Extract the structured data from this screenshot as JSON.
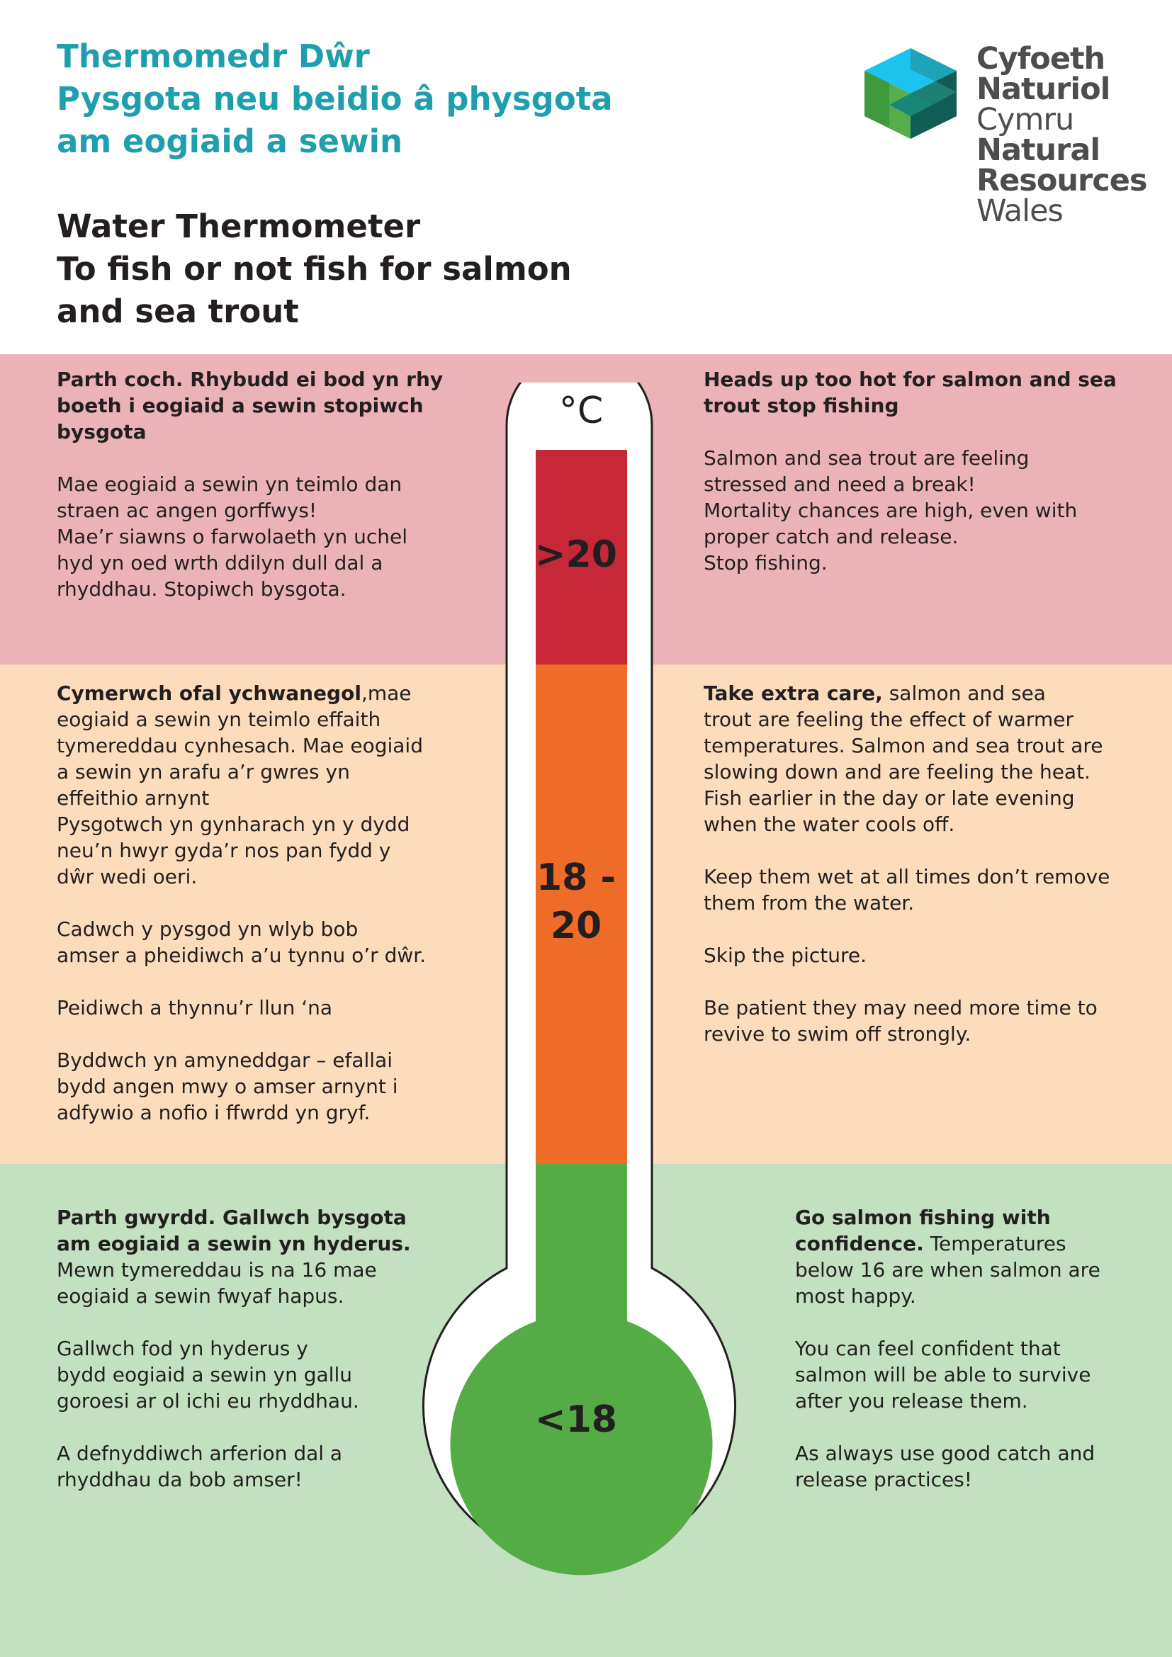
{
  "header": {
    "title_cy": [
      "Thermomedr Dŵr",
      "Pysgota neu beidio â physgota",
      "am eogiaid a sewin"
    ],
    "title_en": [
      "Water Thermometer",
      "To fish or not fish for salmon",
      "and sea trout"
    ]
  },
  "logo": {
    "icon": "nrw-hexagon-logo",
    "lines_cy": [
      "Cyfoeth",
      "Naturiol",
      "Cymru"
    ],
    "lines_en": [
      "Natural",
      "Resources",
      "Wales"
    ]
  },
  "thermometer": {
    "unit": "°C",
    "zones": [
      {
        "label": ">20",
        "color": "#c62838"
      },
      {
        "label_line1": "18 -",
        "label_line2": "20",
        "color": "#ef6b28"
      },
      {
        "label": "<18",
        "color": "#55ab45"
      }
    ]
  },
  "red_zone": {
    "background": "#ebb3b8",
    "cy_heading": [
      "Parth coch. Rhybudd ei bod yn rhy",
      "boeth i eogiaid a sewin stopiwch",
      "bysgota"
    ],
    "cy_body": [
      "Mae eogiaid a sewin yn teimlo dan",
      "straen ac angen gorffwys!",
      "Mae’r siawns o farwolaeth yn uchel",
      "hyd yn oed wrth ddilyn dull dal a",
      "rhyddhau. Stopiwch bysgota."
    ],
    "en_heading": [
      "Heads up too hot for salmon and sea",
      "trout stop fishing"
    ],
    "en_body": [
      "Salmon and sea trout are feeling",
      "stressed and need a break!",
      "Mortality chances are high, even with",
      "proper catch and release.",
      "Stop fishing."
    ]
  },
  "orange_zone": {
    "background": "#fcdcba",
    "cy_lead_bold": "Cymerwch ofal ychwanegol",
    "cy_lead_rest": ",mae",
    "cy_p1": [
      "eogiaid a sewin yn teimlo effaith",
      "tymereddau cynhesach.  Mae eogiaid",
      "a sewin yn arafu a’r gwres yn",
      "effeithio arnynt",
      "Pysgotwch yn gynharach yn y dydd",
      "neu’n hwyr gyda’r nos pan fydd y",
      "dŵr wedi oeri."
    ],
    "cy_p2": [
      "Cadwch y pysgod yn wlyb bob",
      "amser a pheidiwch a’u tynnu o’r dŵr."
    ],
    "cy_p3": [
      "Peidiwch a thynnu’r llun ‘na"
    ],
    "cy_p4": [
      "Byddwch yn amyneddgar – efallai",
      "bydd angen mwy o amser arnynt i",
      "adfywio a nofio i ffwrdd yn gryf."
    ],
    "en_lead_bold": "Take extra care,",
    "en_lead_rest": "  salmon and sea",
    "en_p1": [
      "trout are feeling the effect of warmer",
      "temperatures. Salmon and sea trout are",
      "slowing down and are feeling the heat.",
      "Fish earlier in the day or late evening",
      "when the water cools off."
    ],
    "en_p2": [
      "Keep them wet at all times don’t remove",
      "them from the water."
    ],
    "en_p3": [
      "Skip the picture."
    ],
    "en_p4": [
      "Be patient they may need more time to",
      "revive to swim off strongly."
    ]
  },
  "green_zone": {
    "background": "#c3e0c1",
    "cy_heading": [
      "Parth gwyrdd. Gallwch bysgota",
      "am eogiaid a sewin yn hyderus."
    ],
    "cy_p1": [
      "Mewn tymereddau is na 16 mae",
      "eogiaid a sewin fwyaf hapus."
    ],
    "cy_p2": [
      "Gallwch fod yn hyderus y",
      "bydd eogiaid  a sewin yn gallu",
      "goroesi ar ol ichi eu rhyddhau."
    ],
    "cy_p3": [
      "A defnyddiwch arferion dal a",
      "rhyddhau da bob amser!"
    ],
    "en_lead_bold_1": "Go salmon fishing with",
    "en_lead_bold_2": "confidence.",
    "en_lead_rest": " Temperatures",
    "en_p1": [
      "below 16 are when salmon are",
      "most happy."
    ],
    "en_p2": [
      "You can feel confident that",
      "salmon will be able to survive",
      "after you release them."
    ],
    "en_p3": [
      "As always use good catch and",
      "release practices!"
    ]
  }
}
